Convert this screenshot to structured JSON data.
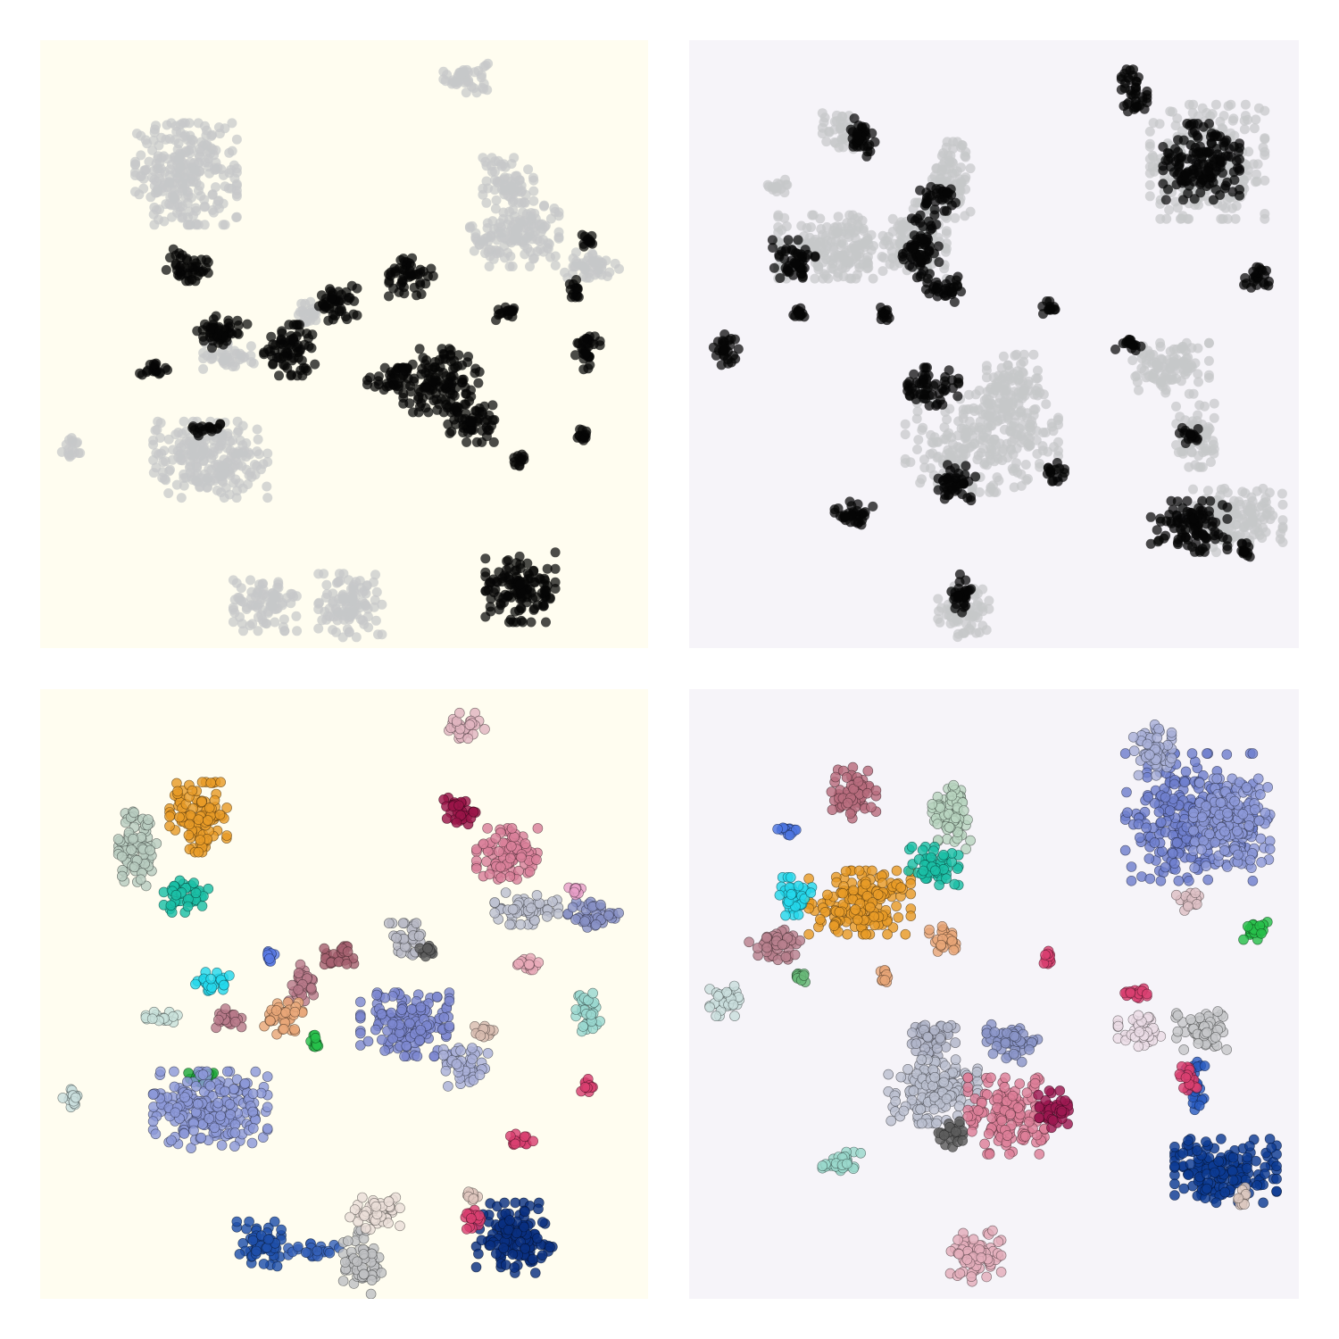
{
  "figure": {
    "colors": {
      "panel_bg_left": "#fffdf0",
      "panel_bg_right": "#f6f4f9"
    }
  },
  "chart_data": [
    {
      "type": "scatter",
      "panel": "top-left",
      "xlim": [
        0,
        100
      ],
      "ylim": [
        0,
        100
      ],
      "grid": false,
      "point_style": {
        "radius": 5.5,
        "opacity": 0.72,
        "outline": false
      },
      "clusters": [
        {
          "x": 70,
          "y": 94,
          "rx": 3.5,
          "ry": 2.5,
          "color": "#c6c7c9"
        },
        {
          "x": 24,
          "y": 78,
          "rx": 8,
          "ry": 8,
          "color": "#c6c7c9"
        },
        {
          "x": 77,
          "y": 77,
          "rx": 4,
          "ry": 3.5,
          "color": "#c6c7c9"
        },
        {
          "x": 78,
          "y": 68,
          "rx": 7,
          "ry": 5,
          "color": "#c6c7c9"
        },
        {
          "x": 90,
          "y": 63,
          "rx": 5,
          "ry": 2,
          "color": "#c6c7c9"
        },
        {
          "x": 28,
          "y": 31,
          "rx": 9,
          "ry": 6,
          "color": "#c6c7c9"
        },
        {
          "x": 37,
          "y": 7,
          "rx": 5,
          "ry": 4,
          "color": "#c6c7c9"
        },
        {
          "x": 51,
          "y": 7,
          "rx": 5,
          "ry": 5,
          "color": "#c6c7c9"
        },
        {
          "x": 5,
          "y": 33,
          "rx": 1.5,
          "ry": 1.5,
          "color": "#c6c7c9"
        },
        {
          "x": 31,
          "y": 48,
          "rx": 4,
          "ry": 2,
          "color": "#c6c7c9"
        },
        {
          "x": 44,
          "y": 55,
          "rx": 2,
          "ry": 2,
          "color": "#c6c7c9"
        },
        {
          "x": 24,
          "y": 63,
          "rx": 3.5,
          "ry": 2.5,
          "color": "#060606"
        },
        {
          "x": 30,
          "y": 52,
          "rx": 4,
          "ry": 2.5,
          "color": "#060606"
        },
        {
          "x": 41,
          "y": 49,
          "rx": 4,
          "ry": 4,
          "color": "#060606"
        },
        {
          "x": 49,
          "y": 57,
          "rx": 3,
          "ry": 3,
          "color": "#060606"
        },
        {
          "x": 58,
          "y": 44,
          "rx": 4,
          "ry": 2,
          "color": "#060606"
        },
        {
          "x": 66,
          "y": 44,
          "rx": 6,
          "ry": 5,
          "color": "#060606"
        },
        {
          "x": 71,
          "y": 37,
          "rx": 4,
          "ry": 3,
          "color": "#060606"
        },
        {
          "x": 61,
          "y": 61,
          "rx": 3.5,
          "ry": 3,
          "color": "#060606"
        },
        {
          "x": 19,
          "y": 46,
          "rx": 2.5,
          "ry": 1,
          "color": "#060606"
        },
        {
          "x": 27,
          "y": 36,
          "rx": 2.5,
          "ry": 1,
          "color": "#060606"
        },
        {
          "x": 77,
          "y": 55,
          "rx": 2,
          "ry": 1,
          "color": "#060606"
        },
        {
          "x": 90,
          "y": 49,
          "rx": 2,
          "ry": 3,
          "color": "#060606"
        },
        {
          "x": 79,
          "y": 10,
          "rx": 5.5,
          "ry": 5.5,
          "color": "#060606"
        },
        {
          "x": 89,
          "y": 35,
          "rx": 1,
          "ry": 1,
          "color": "#060606"
        },
        {
          "x": 88,
          "y": 59,
          "rx": 1,
          "ry": 1.5,
          "color": "#060606"
        },
        {
          "x": 79,
          "y": 31,
          "rx": 1,
          "ry": 1,
          "color": "#060606"
        },
        {
          "x": 90,
          "y": 67,
          "rx": 0.8,
          "ry": 1,
          "color": "#060606"
        }
      ]
    },
    {
      "type": "scatter",
      "panel": "top-right",
      "xlim": [
        0,
        100
      ],
      "ylim": [
        0,
        100
      ],
      "grid": false,
      "point_style": {
        "radius": 5.5,
        "opacity": 0.72,
        "outline": false
      },
      "clusters": [
        {
          "x": 24,
          "y": 66,
          "rx": 9,
          "ry": 5,
          "color": "#c6c7c9"
        },
        {
          "x": 37,
          "y": 67,
          "rx": 5,
          "ry": 6,
          "color": "#c6c7c9"
        },
        {
          "x": 43,
          "y": 77,
          "rx": 3,
          "ry": 6,
          "color": "#c6c7c9"
        },
        {
          "x": 48,
          "y": 34,
          "rx": 12,
          "ry": 8,
          "color": "#c6c7c9"
        },
        {
          "x": 53,
          "y": 42,
          "rx": 4,
          "ry": 6,
          "color": "#c6c7c9"
        },
        {
          "x": 85,
          "y": 80,
          "rx": 9,
          "ry": 9,
          "color": "#c6c7c9"
        },
        {
          "x": 79,
          "y": 46,
          "rx": 6,
          "ry": 4,
          "color": "#c6c7c9"
        },
        {
          "x": 83,
          "y": 35,
          "rx": 3,
          "ry": 5,
          "color": "#c6c7c9"
        },
        {
          "x": 89,
          "y": 21,
          "rx": 8,
          "ry": 5,
          "color": "#c6c7c9"
        },
        {
          "x": 45,
          "y": 6,
          "rx": 4,
          "ry": 4,
          "color": "#c6c7c9"
        },
        {
          "x": 25,
          "y": 85,
          "rx": 3,
          "ry": 3,
          "color": "#c6c7c9"
        },
        {
          "x": 15,
          "y": 76,
          "rx": 2,
          "ry": 1,
          "color": "#c6c7c9"
        },
        {
          "x": 28,
          "y": 84,
          "rx": 2.5,
          "ry": 3,
          "color": "#060606"
        },
        {
          "x": 17,
          "y": 64,
          "rx": 3.5,
          "ry": 3,
          "color": "#060606"
        },
        {
          "x": 38,
          "y": 66,
          "rx": 3,
          "ry": 5,
          "color": "#060606"
        },
        {
          "x": 41,
          "y": 74,
          "rx": 3,
          "ry": 2,
          "color": "#060606"
        },
        {
          "x": 42,
          "y": 59,
          "rx": 3,
          "ry": 2,
          "color": "#060606"
        },
        {
          "x": 84,
          "y": 80,
          "rx": 6,
          "ry": 6,
          "color": "#060606"
        },
        {
          "x": 73,
          "y": 91,
          "rx": 2,
          "ry": 4,
          "color": "#060606"
        },
        {
          "x": 82,
          "y": 20,
          "rx": 6,
          "ry": 4,
          "color": "#060606"
        },
        {
          "x": 40,
          "y": 43,
          "rx": 4,
          "ry": 3,
          "color": "#060606"
        },
        {
          "x": 44,
          "y": 27,
          "rx": 3,
          "ry": 3,
          "color": "#060606"
        },
        {
          "x": 27,
          "y": 22,
          "rx": 3,
          "ry": 2,
          "color": "#060606"
        },
        {
          "x": 45,
          "y": 9,
          "rx": 2,
          "ry": 3,
          "color": "#060606"
        },
        {
          "x": 6,
          "y": 49,
          "rx": 2,
          "ry": 2.5,
          "color": "#060606"
        },
        {
          "x": 18,
          "y": 55,
          "rx": 1,
          "ry": 1,
          "color": "#060606"
        },
        {
          "x": 32,
          "y": 55,
          "rx": 1,
          "ry": 1,
          "color": "#060606"
        },
        {
          "x": 59,
          "y": 56,
          "rx": 1,
          "ry": 1,
          "color": "#060606"
        },
        {
          "x": 93,
          "y": 61,
          "rx": 2,
          "ry": 2,
          "color": "#060606"
        },
        {
          "x": 72,
          "y": 50,
          "rx": 2,
          "ry": 1,
          "color": "#060606"
        },
        {
          "x": 82,
          "y": 35,
          "rx": 1.5,
          "ry": 1.5,
          "color": "#060606"
        },
        {
          "x": 91,
          "y": 16,
          "rx": 1,
          "ry": 1.5,
          "color": "#060606"
        },
        {
          "x": 60,
          "y": 29,
          "rx": 1.5,
          "ry": 1.5,
          "color": "#060606"
        }
      ]
    },
    {
      "type": "scatter",
      "panel": "bottom-left",
      "xlim": [
        0,
        100
      ],
      "ylim": [
        0,
        100
      ],
      "grid": false,
      "point_style": {
        "radius": 5.5,
        "opacity": 0.82,
        "outline": true
      },
      "clusters": [
        {
          "x": 70,
          "y": 94,
          "rx": 3,
          "ry": 2,
          "color": "#e0b4c0"
        },
        {
          "x": 26,
          "y": 79,
          "rx": 4.5,
          "ry": 5.5,
          "color": "#e89b27"
        },
        {
          "x": 16,
          "y": 74,
          "rx": 3,
          "ry": 6,
          "color": "#b8ccc0"
        },
        {
          "x": 24,
          "y": 66,
          "rx": 3.5,
          "ry": 2.5,
          "color": "#1bbfa6"
        },
        {
          "x": 69,
          "y": 80,
          "rx": 2.5,
          "ry": 2.5,
          "color": "#9a1548"
        },
        {
          "x": 77,
          "y": 73,
          "rx": 5,
          "ry": 4,
          "color": "#d9809a"
        },
        {
          "x": 80,
          "y": 64,
          "rx": 5,
          "ry": 2.5,
          "color": "#bcbfcf"
        },
        {
          "x": 91,
          "y": 63,
          "rx": 4,
          "ry": 2,
          "color": "#8890c4"
        },
        {
          "x": 60,
          "y": 59,
          "rx": 2.5,
          "ry": 2.5,
          "color": "#b8b9c6"
        },
        {
          "x": 64,
          "y": 57,
          "rx": 1.5,
          "ry": 1,
          "color": "#5d5d5d"
        },
        {
          "x": 28,
          "y": 52,
          "rx": 3,
          "ry": 1.5,
          "color": "#24d8eb"
        },
        {
          "x": 43,
          "y": 52,
          "rx": 2,
          "ry": 3,
          "color": "#b87a8a"
        },
        {
          "x": 49,
          "y": 56,
          "rx": 2.5,
          "ry": 2,
          "color": "#a66170"
        },
        {
          "x": 40,
          "y": 46,
          "rx": 3,
          "ry": 2.5,
          "color": "#e8a678"
        },
        {
          "x": 31,
          "y": 46,
          "rx": 2.5,
          "ry": 1.5,
          "color": "#b87a8a"
        },
        {
          "x": 60,
          "y": 45,
          "rx": 7,
          "ry": 5,
          "color": "#7c88d0"
        },
        {
          "x": 70,
          "y": 38,
          "rx": 3.5,
          "ry": 3,
          "color": "#aab0d8"
        },
        {
          "x": 73,
          "y": 44,
          "rx": 1.5,
          "ry": 1,
          "color": "#d8bcb0"
        },
        {
          "x": 80,
          "y": 55,
          "rx": 2,
          "ry": 1,
          "color": "#e8aab8"
        },
        {
          "x": 90,
          "y": 47,
          "rx": 2,
          "ry": 3,
          "color": "#9ad8d0"
        },
        {
          "x": 20,
          "y": 46,
          "rx": 2.5,
          "ry": 1,
          "color": "#c8e0da"
        },
        {
          "x": 27,
          "y": 36,
          "rx": 2.5,
          "ry": 1,
          "color": "#1fa83a"
        },
        {
          "x": 5,
          "y": 33,
          "rx": 1.5,
          "ry": 1.5,
          "color": "#c9dedd"
        },
        {
          "x": 45,
          "y": 42,
          "rx": 1,
          "ry": 1.5,
          "color": "#27c04a"
        },
        {
          "x": 28,
          "y": 31,
          "rx": 9,
          "ry": 6,
          "color": "#8c98d8"
        },
        {
          "x": 36,
          "y": 9,
          "rx": 3.5,
          "ry": 3.5,
          "color": "#1f4faa"
        },
        {
          "x": 45,
          "y": 8,
          "rx": 4,
          "ry": 1,
          "color": "#3560b8"
        },
        {
          "x": 53,
          "y": 6,
          "rx": 3,
          "ry": 5,
          "color": "#c0c1c3"
        },
        {
          "x": 55,
          "y": 14,
          "rx": 4,
          "ry": 2.5,
          "color": "#eaded8"
        },
        {
          "x": 78,
          "y": 10,
          "rx": 6,
          "ry": 5.5,
          "color": "#0a3080"
        },
        {
          "x": 71,
          "y": 13,
          "rx": 1.5,
          "ry": 1.5,
          "color": "#d94070"
        },
        {
          "x": 71,
          "y": 17,
          "rx": 1,
          "ry": 1,
          "color": "#e0c8c0"
        },
        {
          "x": 79,
          "y": 26,
          "rx": 2,
          "ry": 1,
          "color": "#d94070"
        },
        {
          "x": 90,
          "y": 35,
          "rx": 1,
          "ry": 1,
          "color": "#d94070"
        },
        {
          "x": 88,
          "y": 67,
          "rx": 1,
          "ry": 0.8,
          "color": "#e8a0c8"
        },
        {
          "x": 38,
          "y": 56,
          "rx": 1,
          "ry": 1,
          "color": "#5a7be6"
        }
      ]
    },
    {
      "type": "scatter",
      "panel": "bottom-right",
      "xlim": [
        0,
        100
      ],
      "ylim": [
        0,
        100
      ],
      "grid": false,
      "point_style": {
        "radius": 5.5,
        "opacity": 0.82,
        "outline": true
      },
      "clusters": [
        {
          "x": 27,
          "y": 83,
          "rx": 3.5,
          "ry": 4,
          "color": "#b86c7e"
        },
        {
          "x": 43,
          "y": 79,
          "rx": 3,
          "ry": 5,
          "color": "#b8d4c0"
        },
        {
          "x": 82,
          "y": 79,
          "rx": 10,
          "ry": 10,
          "color": "#6f7fcd"
        },
        {
          "x": 76,
          "y": 90,
          "rx": 3,
          "ry": 4,
          "color": "#a8b0d8"
        },
        {
          "x": 93,
          "y": 61,
          "rx": 2,
          "ry": 2,
          "color": "#27c04a"
        },
        {
          "x": 82,
          "y": 65,
          "rx": 2,
          "ry": 1.5,
          "color": "#ddc0c4"
        },
        {
          "x": 28,
          "y": 65,
          "rx": 8,
          "ry": 5,
          "color": "#e89b27"
        },
        {
          "x": 17,
          "y": 66,
          "rx": 3,
          "ry": 3,
          "color": "#24d8eb"
        },
        {
          "x": 40,
          "y": 71,
          "rx": 4,
          "ry": 3,
          "color": "#1bbfa6"
        },
        {
          "x": 14,
          "y": 58,
          "rx": 4,
          "ry": 2.5,
          "color": "#b8808e"
        },
        {
          "x": 42,
          "y": 59,
          "rx": 2.5,
          "ry": 2,
          "color": "#e8a678"
        },
        {
          "x": 18,
          "y": 53,
          "rx": 1,
          "ry": 1,
          "color": "#68b878"
        },
        {
          "x": 32,
          "y": 53,
          "rx": 1,
          "ry": 1,
          "color": "#e8a678"
        },
        {
          "x": 6,
          "y": 49,
          "rx": 2.5,
          "ry": 2.5,
          "color": "#c9dedd"
        },
        {
          "x": 59,
          "y": 56,
          "rx": 1,
          "ry": 1,
          "color": "#d94070"
        },
        {
          "x": 16,
          "y": 77,
          "rx": 1.5,
          "ry": 1,
          "color": "#4d75e0"
        },
        {
          "x": 40,
          "y": 43,
          "rx": 3.5,
          "ry": 3,
          "color": "#b0b4c8"
        },
        {
          "x": 53,
          "y": 42,
          "rx": 4,
          "ry": 3,
          "color": "#8a95c8"
        },
        {
          "x": 40,
          "y": 34,
          "rx": 7,
          "ry": 5,
          "color": "#bbbfcf"
        },
        {
          "x": 52,
          "y": 30,
          "rx": 6,
          "ry": 6,
          "color": "#dd7f98"
        },
        {
          "x": 60,
          "y": 31,
          "rx": 3,
          "ry": 3,
          "color": "#9c1850"
        },
        {
          "x": 43,
          "y": 27,
          "rx": 2,
          "ry": 2,
          "color": "#5d5d5d"
        },
        {
          "x": 25,
          "y": 22,
          "rx": 3,
          "ry": 2,
          "color": "#9ad8cc"
        },
        {
          "x": 47,
          "y": 7,
          "rx": 4,
          "ry": 4,
          "color": "#e3adbb"
        },
        {
          "x": 74,
          "y": 44,
          "rx": 3.5,
          "ry": 2.5,
          "color": "#eadce5"
        },
        {
          "x": 84,
          "y": 44,
          "rx": 4,
          "ry": 3,
          "color": "#c6c7c9"
        },
        {
          "x": 83,
          "y": 35,
          "rx": 1.5,
          "ry": 4,
          "color": "#2a5cc0"
        },
        {
          "x": 82,
          "y": 36,
          "rx": 1.5,
          "ry": 2,
          "color": "#d94070"
        },
        {
          "x": 73,
          "y": 50,
          "rx": 2,
          "ry": 1,
          "color": "#d94070"
        },
        {
          "x": 88,
          "y": 21,
          "rx": 8,
          "ry": 5,
          "color": "#0c3a92"
        },
        {
          "x": 91,
          "y": 17,
          "rx": 1,
          "ry": 1.5,
          "color": "#dcc8c0"
        },
        {
          "x": 89,
          "y": 78,
          "rx": 6,
          "ry": 7,
          "color": "#8c98d8"
        }
      ]
    }
  ]
}
